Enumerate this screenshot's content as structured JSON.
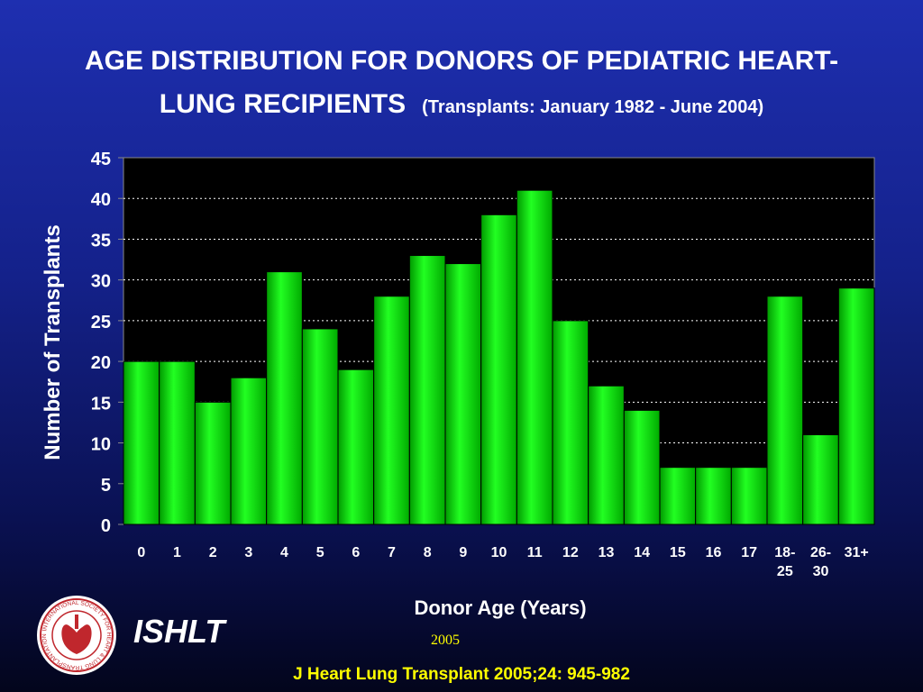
{
  "header": {
    "title_line1": "AGE DISTRIBUTION FOR DONORS OF PEDIATRIC HEART-",
    "title_line2": "LUNG RECIPIENTS",
    "subtitle": "(Transplants: January 1982 - June 2004)"
  },
  "footer": {
    "brand": "ISHLT",
    "year": "2005",
    "citation": "J Heart Lung Transplant 2005;24: 945-982",
    "logo_text": "INTERNATIONAL SOCIETY FOR HEART & LUNG TRANSPLANTATION"
  },
  "colors": {
    "bar": "#00ee00",
    "plot_background": "#000000",
    "text": "#ffffff",
    "accent": "#ffff00",
    "logo": "#c0272d"
  },
  "chart_data": {
    "type": "bar",
    "xlabel": "Donor Age (Years)",
    "ylabel": "Number of Transplants",
    "ylim": [
      0,
      45
    ],
    "yticks": [
      0,
      5,
      10,
      15,
      20,
      25,
      30,
      35,
      40,
      45
    ],
    "grid": "horizontal dotted",
    "categories": [
      "0",
      "1",
      "2",
      "3",
      "4",
      "5",
      "6",
      "7",
      "8",
      "9",
      "10",
      "11",
      "12",
      "13",
      "14",
      "15",
      "16",
      "17",
      "18-25",
      "26-30",
      "31+"
    ],
    "category_lines": [
      [
        "0"
      ],
      [
        "1"
      ],
      [
        "2"
      ],
      [
        "3"
      ],
      [
        "4"
      ],
      [
        "5"
      ],
      [
        "6"
      ],
      [
        "7"
      ],
      [
        "8"
      ],
      [
        "9"
      ],
      [
        "10"
      ],
      [
        "11"
      ],
      [
        "12"
      ],
      [
        "13"
      ],
      [
        "14"
      ],
      [
        "15"
      ],
      [
        "16"
      ],
      [
        "17"
      ],
      [
        "18-",
        "25"
      ],
      [
        "26-",
        "30"
      ],
      [
        "31+"
      ]
    ],
    "values": [
      20,
      20,
      15,
      18,
      31,
      24,
      19,
      28,
      33,
      32,
      38,
      41,
      25,
      17,
      14,
      7,
      7,
      7,
      28,
      11,
      29
    ]
  }
}
